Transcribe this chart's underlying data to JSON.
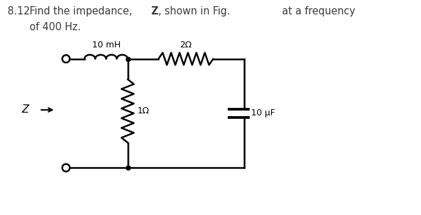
{
  "label_10mH": "10 mH",
  "label_2ohm": "2Ω",
  "label_1ohm": "1Ω",
  "label_10uF": "10 μF",
  "label_Z": "Z",
  "bg_color": "#ffffff",
  "line_color": "#000000",
  "lw": 1.8,
  "text_color": "#3a3a3a"
}
